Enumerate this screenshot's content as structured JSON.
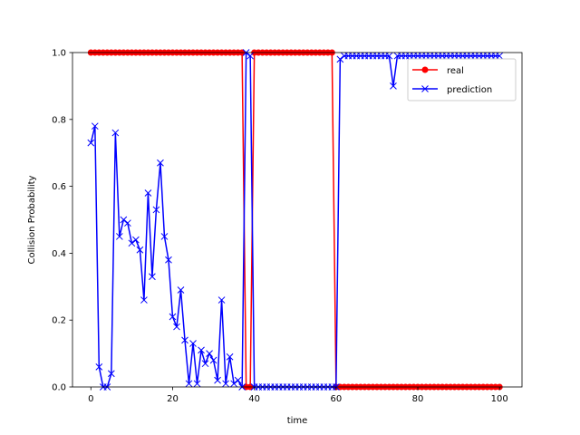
{
  "chart_data": {
    "type": "line",
    "title": "",
    "xlabel": "time",
    "ylabel": "Collision Probability",
    "xlim": [
      -4.5,
      105.5
    ],
    "ylim": [
      0,
      1
    ],
    "xticks": [
      0,
      20,
      40,
      60,
      80,
      100
    ],
    "yticks": [
      0.0,
      0.2,
      0.4,
      0.6,
      0.8,
      1.0
    ],
    "xtick_labels": [
      "0",
      "20",
      "40",
      "60",
      "80",
      "100"
    ],
    "ytick_labels": [
      "0.0",
      "0.2",
      "0.4",
      "0.6",
      "0.8",
      "1.0"
    ],
    "grid": false,
    "legend_position": "upper right",
    "x": [
      0,
      1,
      2,
      3,
      4,
      5,
      6,
      7,
      8,
      9,
      10,
      11,
      12,
      13,
      14,
      15,
      16,
      17,
      18,
      19,
      20,
      21,
      22,
      23,
      24,
      25,
      26,
      27,
      28,
      29,
      30,
      31,
      32,
      33,
      34,
      35,
      36,
      37,
      38,
      39,
      40,
      41,
      42,
      43,
      44,
      45,
      46,
      47,
      48,
      49,
      50,
      51,
      52,
      53,
      54,
      55,
      56,
      57,
      58,
      59,
      60,
      61,
      62,
      63,
      64,
      65,
      66,
      67,
      68,
      69,
      70,
      71,
      72,
      73,
      74,
      75,
      76,
      77,
      78,
      79,
      80,
      81,
      82,
      83,
      84,
      85,
      86,
      87,
      88,
      89,
      90,
      91,
      92,
      93,
      94,
      95,
      96,
      97,
      98,
      99,
      100
    ],
    "series": [
      {
        "name": "real",
        "color": "#ff0000",
        "marker": "circle",
        "values": [
          1,
          1,
          1,
          1,
          1,
          1,
          1,
          1,
          1,
          1,
          1,
          1,
          1,
          1,
          1,
          1,
          1,
          1,
          1,
          1,
          1,
          1,
          1,
          1,
          1,
          1,
          1,
          1,
          1,
          1,
          1,
          1,
          1,
          1,
          1,
          1,
          1,
          1,
          0,
          0,
          1,
          1,
          1,
          1,
          1,
          1,
          1,
          1,
          1,
          1,
          1,
          1,
          1,
          1,
          1,
          1,
          1,
          1,
          1,
          1,
          0,
          0,
          0,
          0,
          0,
          0,
          0,
          0,
          0,
          0,
          0,
          0,
          0,
          0,
          0,
          0,
          0,
          0,
          0,
          0,
          0,
          0,
          0,
          0,
          0,
          0,
          0,
          0,
          0,
          0,
          0,
          0,
          0,
          0,
          0,
          0,
          0,
          0,
          0,
          0,
          0
        ]
      },
      {
        "name": "prediction",
        "color": "#0000ff",
        "marker": "x",
        "values": [
          0.73,
          0.78,
          0.06,
          0.0,
          0.0,
          0.04,
          0.76,
          0.45,
          0.5,
          0.49,
          0.43,
          0.44,
          0.41,
          0.26,
          0.58,
          0.33,
          0.53,
          0.67,
          0.45,
          0.38,
          0.21,
          0.18,
          0.29,
          0.14,
          0.01,
          0.13,
          0.01,
          0.11,
          0.07,
          0.1,
          0.08,
          0.02,
          0.26,
          0.01,
          0.09,
          0.01,
          0.02,
          0.0,
          1.0,
          0.99,
          0.0,
          0.0,
          0.0,
          0.0,
          0.0,
          0.0,
          0.0,
          0.0,
          0.0,
          0.0,
          0.0,
          0.0,
          0.0,
          0.0,
          0.0,
          0.0,
          0.0,
          0.0,
          0.0,
          0.0,
          0.0,
          0.98,
          0.99,
          0.99,
          0.99,
          0.99,
          0.99,
          0.99,
          0.99,
          0.99,
          0.99,
          0.99,
          0.99,
          0.99,
          0.9,
          0.99,
          0.99,
          0.99,
          0.99,
          0.99,
          0.99,
          0.99,
          0.99,
          0.99,
          0.99,
          0.99,
          0.99,
          0.99,
          0.99,
          0.99,
          0.99,
          0.99,
          0.99,
          0.99,
          0.99,
          0.99,
          0.99,
          0.99,
          0.99,
          0.99,
          0.99
        ]
      }
    ]
  }
}
